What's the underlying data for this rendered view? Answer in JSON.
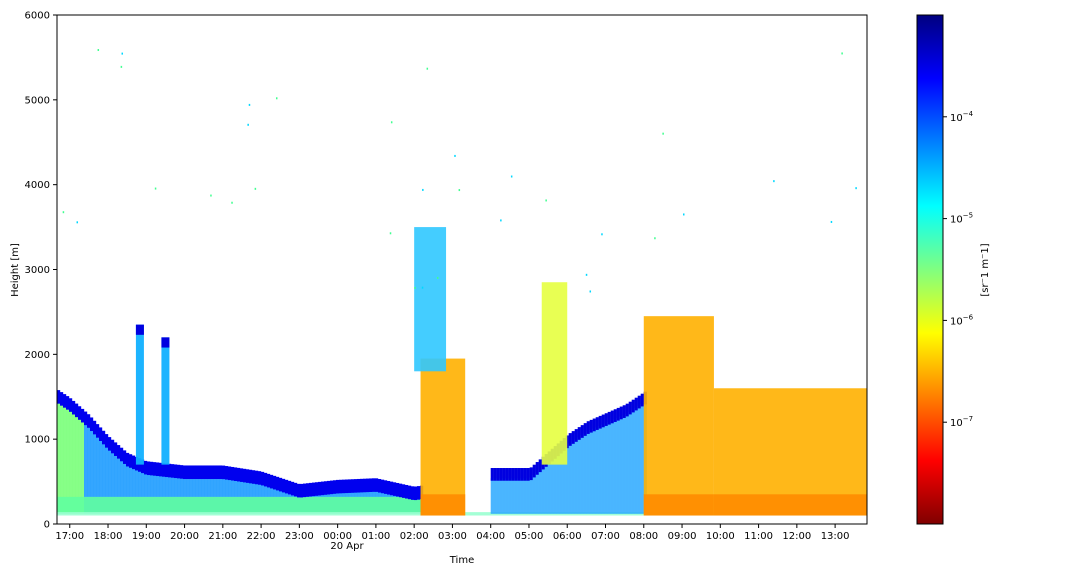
{
  "chart_data": {
    "type": "heatmap",
    "title": "",
    "xlabel": "Time",
    "ylabel": "Height [m]",
    "ylim": [
      0,
      6000
    ],
    "x_tick_labels": [
      "17:00",
      "18:00",
      "19:00",
      "20:00",
      "21:00",
      "22:00",
      "23:00",
      "00:00",
      "01:00",
      "02:00",
      "03:00",
      "04:00",
      "05:00",
      "06:00",
      "07:00",
      "08:00",
      "09:00",
      "10:00",
      "11:00",
      "12:00",
      "13:00"
    ],
    "x_date_label": "20 Apr",
    "xlim": [
      "16:40",
      "13:50"
    ],
    "y_ticks": [
      0,
      1000,
      2000,
      3000,
      4000,
      5000,
      6000
    ],
    "colorbar": {
      "label": "[sr^-1 m^-1]",
      "label_display": "[sr⁻1 m⁻1]",
      "scale": "log",
      "range": [
        "1e-8",
        "1e-3"
      ],
      "tick_values": [
        "1e-7",
        "1e-6",
        "1e-5",
        "1e-4"
      ],
      "tick_labels_base": "10",
      "tick_labels_exp": [
        "−7",
        "−6",
        "−5",
        "−4"
      ],
      "colormap": "jet",
      "colors": [
        "#800000",
        "#ff0000",
        "#ff8000",
        "#ffff00",
        "#80ff80",
        "#00ffff",
        "#0080ff",
        "#0000ff",
        "#000080"
      ]
    },
    "features": [
      {
        "name": "aerosol_layer_top",
        "time": [
          "16:40",
          "17:00",
          "17:30",
          "18:00",
          "18:30",
          "19:00",
          "20:00",
          "21:00",
          "22:00",
          "23:00",
          "00:00",
          "01:00",
          "02:00",
          "02:30"
        ],
        "height": [
          1550,
          1450,
          1250,
          1000,
          800,
          700,
          650,
          650,
          580,
          430,
          480,
          500,
          400,
          430
        ]
      },
      {
        "name": "cloud_band",
        "time": [
          "04:00",
          "05:00",
          "05:30",
          "06:00",
          "06:30",
          "07:00",
          "07:30",
          "08:00"
        ],
        "height": [
          600,
          600,
          800,
          1000,
          1150,
          1250,
          1350,
          1500
        ]
      },
      {
        "name": "cloud_column",
        "time": "18:50",
        "height_range": [
          700,
          2350
        ]
      },
      {
        "name": "cloud_column",
        "time": "19:30",
        "height_range": [
          700,
          2200
        ]
      },
      {
        "name": "elevated_cloud",
        "time_range": [
          "02:00",
          "02:50"
        ],
        "height_range": [
          1800,
          3500
        ]
      },
      {
        "name": "elevated_cloud",
        "time_range": [
          "05:20",
          "06:00"
        ],
        "height_range": [
          700,
          2850
        ]
      },
      {
        "name": "boundary_layer_aerosol",
        "time_range": [
          "02:10",
          "03:20"
        ],
        "height_range": [
          100,
          1950
        ]
      },
      {
        "name": "boundary_layer_aerosol",
        "time_range": [
          "08:00",
          "09:50"
        ],
        "height_range": [
          100,
          2450
        ]
      },
      {
        "name": "boundary_layer_aerosol",
        "time_range": [
          "09:50",
          "13:50"
        ],
        "height_range": [
          100,
          1600
        ]
      }
    ]
  }
}
